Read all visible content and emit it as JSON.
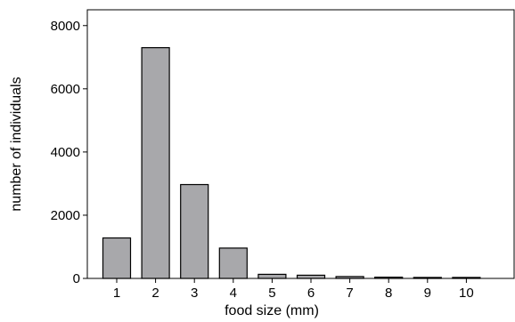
{
  "chart_data": {
    "type": "bar",
    "title": "",
    "xlabel": "food size (mm)",
    "ylabel": "number of individuals",
    "categories": [
      "1",
      "2",
      "3",
      "4",
      "5",
      "6",
      "7",
      "8",
      "9",
      "10"
    ],
    "values": [
      1280,
      7300,
      2970,
      960,
      130,
      100,
      60,
      40,
      30,
      30
    ],
    "ylim": [
      0,
      8500
    ],
    "yticks": [
      0,
      2000,
      4000,
      6000,
      8000
    ],
    "ytick_labels": [
      "0",
      "2000",
      "4000",
      "6000",
      "8000"
    ],
    "grid": false,
    "bar_color": "#a8a8ab",
    "bar_edge_color": "#000000"
  }
}
